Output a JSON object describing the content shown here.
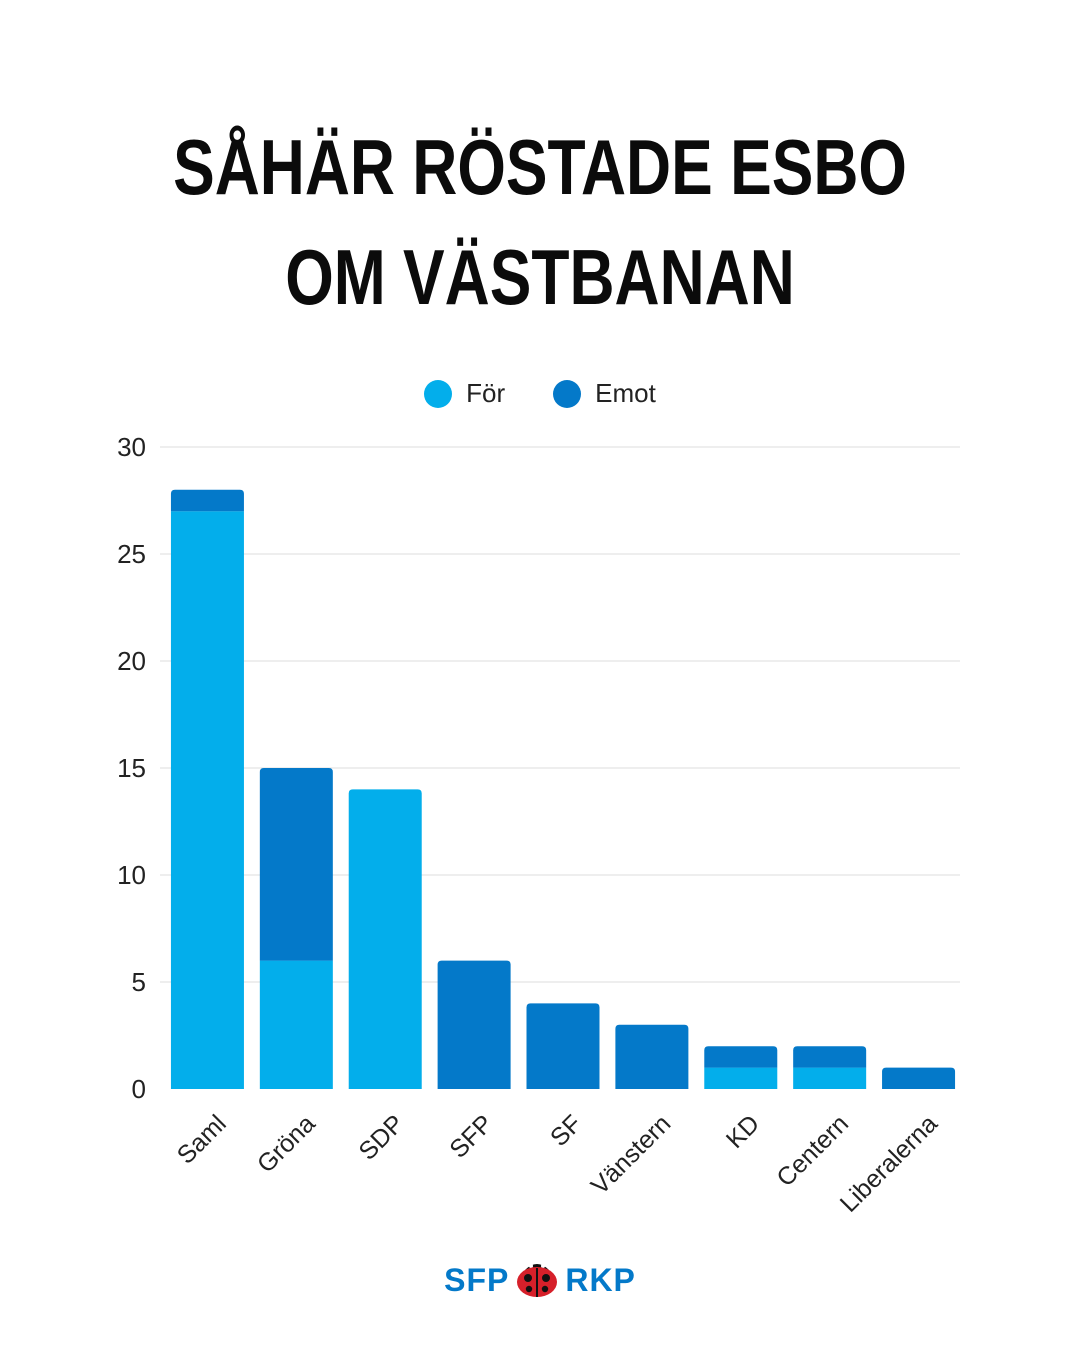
{
  "title": {
    "line1": "SÅHÄR RÖSTADE ESBO",
    "line2": "OM VÄSTBANAN"
  },
  "legend": [
    {
      "label": "För",
      "color": "#03aeeb"
    },
    {
      "label": "Emot",
      "color": "#0479c9"
    }
  ],
  "logo": {
    "left": "SFP",
    "right": "RKP",
    "color": "#0479c9",
    "icon": "ladybug-icon"
  },
  "colors": {
    "for": "#03aeeb",
    "against": "#0479c9",
    "grid": "#dddddd"
  },
  "chart_data": {
    "type": "bar",
    "stacked": true,
    "categories": [
      "Saml",
      "Gröna",
      "SDP",
      "SFP",
      "SF",
      "Vänstern",
      "KD",
      "Centern",
      "Liberalerna"
    ],
    "series": [
      {
        "name": "För",
        "values": [
          27,
          6,
          14,
          0,
          0,
          0,
          1,
          1,
          0
        ]
      },
      {
        "name": "Emot",
        "values": [
          1,
          9,
          0,
          6,
          4,
          3,
          1,
          1,
          1
        ]
      }
    ],
    "ylim": [
      0,
      30
    ],
    "yticks": [
      0,
      5,
      10,
      15,
      20,
      25,
      30
    ],
    "grid": true,
    "legend_position": "top-center"
  }
}
